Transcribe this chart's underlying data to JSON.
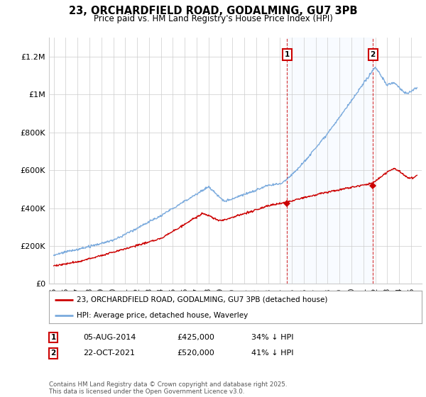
{
  "title": "23, ORCHARDFIELD ROAD, GODALMING, GU7 3PB",
  "subtitle": "Price paid vs. HM Land Registry's House Price Index (HPI)",
  "ylim": [
    0,
    1300000
  ],
  "yticks": [
    0,
    200000,
    400000,
    600000,
    800000,
    1000000,
    1200000
  ],
  "ytick_labels": [
    "£0",
    "£200K",
    "£400K",
    "£600K",
    "£800K",
    "£1M",
    "£1.2M"
  ],
  "xstart_year": 1995,
  "xend_year": 2025,
  "sale1_date": 2014.58,
  "sale1_price": 425000,
  "sale1_label": "1",
  "sale2_date": 2021.8,
  "sale2_price": 520000,
  "sale2_label": "2",
  "red_color": "#cc0000",
  "blue_color": "#7aaadd",
  "blue_fill": "#ddeeff",
  "annotation_box_color": "#cc0000",
  "legend_label_red": "23, ORCHARDFIELD ROAD, GODALMING, GU7 3PB (detached house)",
  "legend_label_blue": "HPI: Average price, detached house, Waverley",
  "table_row1": [
    "1",
    "05-AUG-2014",
    "£425,000",
    "34% ↓ HPI"
  ],
  "table_row2": [
    "2",
    "22-OCT-2021",
    "£520,000",
    "41% ↓ HPI"
  ],
  "footnote": "Contains HM Land Registry data © Crown copyright and database right 2025.\nThis data is licensed under the Open Government Licence v3.0.",
  "background_color": "#ffffff"
}
